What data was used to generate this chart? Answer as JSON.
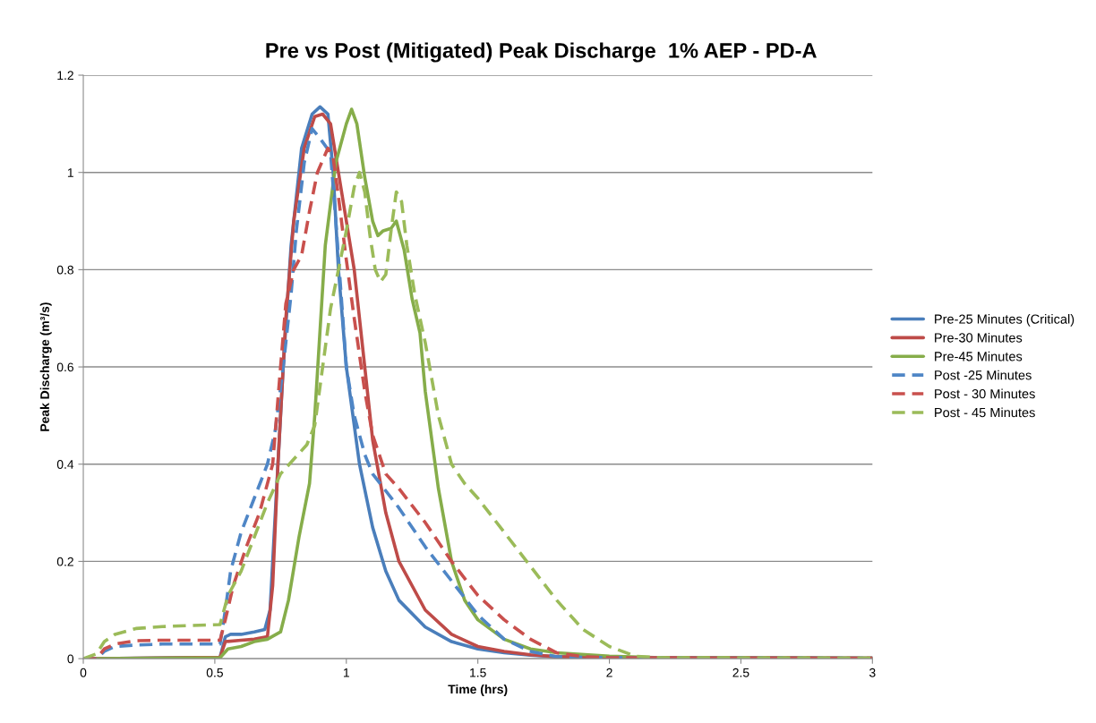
{
  "chart_data": {
    "type": "line",
    "title": "Pre vs Post (Mitigated) Peak Discharge  1% AEP - PD-A",
    "xlabel": "Time (hrs)",
    "ylabel": "Peak Discharge (m³/s)",
    "xlim": [
      0,
      3
    ],
    "xticks": [
      0,
      0.5,
      1,
      1.5,
      2,
      2.5,
      3
    ],
    "ylim": [
      0,
      1.2
    ],
    "yticks": [
      0,
      0.2,
      0.4,
      0.6,
      0.8,
      1,
      1.2
    ],
    "grid": "y",
    "legend": "right",
    "marker": "none",
    "series": [
      {
        "name": "Pre-25 Minutes (Critical)",
        "color": "#4a7ebb",
        "line_style": "solid",
        "x": [
          0,
          0.05,
          0.52,
          0.54,
          0.56,
          0.6,
          0.65,
          0.69,
          0.71,
          0.73,
          0.76,
          0.79,
          0.83,
          0.87,
          0.9,
          0.93,
          0.95,
          0.97,
          1.0,
          1.05,
          1.1,
          1.15,
          1.2,
          1.3,
          1.4,
          1.5,
          1.6,
          1.7,
          1.8,
          2.0,
          3.0
        ],
        "values": [
          0,
          0,
          0.003,
          0.045,
          0.05,
          0.05,
          0.055,
          0.06,
          0.1,
          0.3,
          0.6,
          0.85,
          1.05,
          1.12,
          1.135,
          1.12,
          1.0,
          0.8,
          0.6,
          0.4,
          0.27,
          0.18,
          0.12,
          0.065,
          0.035,
          0.02,
          0.012,
          0.007,
          0.004,
          0.002,
          0.001
        ]
      },
      {
        "name": "Pre-30 Minutes",
        "color": "#be4b48",
        "line_style": "solid",
        "x": [
          0,
          0.05,
          0.52,
          0.54,
          0.6,
          0.65,
          0.7,
          0.72,
          0.74,
          0.77,
          0.8,
          0.84,
          0.88,
          0.91,
          0.94,
          0.97,
          1.0,
          1.03,
          1.07,
          1.1,
          1.15,
          1.2,
          1.3,
          1.4,
          1.5,
          1.6,
          1.7,
          1.8,
          2.0,
          3.0
        ],
        "values": [
          0,
          0,
          0.003,
          0.035,
          0.038,
          0.04,
          0.045,
          0.15,
          0.4,
          0.7,
          0.9,
          1.05,
          1.115,
          1.12,
          1.1,
          1.0,
          0.9,
          0.8,
          0.6,
          0.45,
          0.3,
          0.2,
          0.1,
          0.05,
          0.025,
          0.015,
          0.008,
          0.004,
          0.002,
          0.001
        ]
      },
      {
        "name": "Pre-45 Minutes",
        "color": "#86ad4a",
        "line_style": "solid",
        "x": [
          0,
          0.05,
          0.52,
          0.55,
          0.6,
          0.65,
          0.7,
          0.75,
          0.78,
          0.82,
          0.86,
          0.88,
          0.92,
          0.96,
          1.0,
          1.02,
          1.04,
          1.07,
          1.1,
          1.12,
          1.14,
          1.17,
          1.19,
          1.22,
          1.25,
          1.28,
          1.3,
          1.35,
          1.4,
          1.45,
          1.5,
          1.6,
          1.7,
          1.8,
          2.0,
          2.2,
          3.0
        ],
        "values": [
          0,
          0,
          0.002,
          0.02,
          0.025,
          0.035,
          0.04,
          0.055,
          0.12,
          0.25,
          0.36,
          0.5,
          0.85,
          1.02,
          1.1,
          1.13,
          1.1,
          0.99,
          0.9,
          0.87,
          0.88,
          0.885,
          0.9,
          0.84,
          0.74,
          0.67,
          0.55,
          0.35,
          0.2,
          0.12,
          0.08,
          0.04,
          0.02,
          0.012,
          0.005,
          0.002,
          0.001
        ]
      },
      {
        "name": "Post -25 Minutes",
        "color": "#4f86c6",
        "line_style": "dashed",
        "x": [
          0,
          0.05,
          0.08,
          0.12,
          0.2,
          0.3,
          0.4,
          0.52,
          0.54,
          0.56,
          0.6,
          0.65,
          0.7,
          0.73,
          0.76,
          0.79,
          0.81,
          0.84,
          0.87,
          0.9,
          0.94,
          0.96,
          0.98,
          1.0,
          1.03,
          1.07,
          1.1,
          1.2,
          1.3,
          1.4,
          1.5,
          1.6,
          1.7,
          1.8,
          2.0,
          3.0
        ],
        "values": [
          0,
          0,
          0.015,
          0.025,
          0.028,
          0.03,
          0.03,
          0.03,
          0.1,
          0.18,
          0.26,
          0.33,
          0.4,
          0.47,
          0.6,
          0.75,
          0.88,
          1.02,
          1.09,
          1.07,
          1.04,
          0.9,
          0.75,
          0.6,
          0.5,
          0.42,
          0.38,
          0.31,
          0.23,
          0.16,
          0.09,
          0.04,
          0.015,
          0.004,
          0.002,
          0.001
        ]
      },
      {
        "name": "Post - 30 Minutes",
        "color": "#c9504d",
        "line_style": "dashed",
        "x": [
          0,
          0.05,
          0.08,
          0.12,
          0.2,
          0.3,
          0.52,
          0.54,
          0.57,
          0.62,
          0.67,
          0.72,
          0.75,
          0.77,
          0.8,
          0.83,
          0.86,
          0.89,
          0.93,
          0.95,
          0.97,
          1.0,
          1.03,
          1.07,
          1.1,
          1.15,
          1.2,
          1.3,
          1.4,
          1.5,
          1.6,
          1.7,
          1.8,
          1.9,
          2.0,
          3.0
        ],
        "values": [
          0,
          0,
          0.02,
          0.03,
          0.037,
          0.038,
          0.038,
          0.08,
          0.15,
          0.23,
          0.3,
          0.4,
          0.6,
          0.73,
          0.8,
          0.83,
          0.92,
          1.0,
          1.05,
          1.03,
          0.95,
          0.82,
          0.7,
          0.55,
          0.46,
          0.38,
          0.35,
          0.28,
          0.2,
          0.13,
          0.08,
          0.04,
          0.012,
          0.004,
          0.002,
          0.001
        ]
      },
      {
        "name": "Post - 45 Minutes",
        "color": "#9bbb59",
        "line_style": "dashed",
        "x": [
          0,
          0.05,
          0.08,
          0.12,
          0.2,
          0.3,
          0.4,
          0.52,
          0.55,
          0.6,
          0.65,
          0.7,
          0.75,
          0.8,
          0.85,
          0.88,
          0.91,
          0.94,
          0.97,
          1.0,
          1.03,
          1.05,
          1.07,
          1.09,
          1.11,
          1.13,
          1.15,
          1.17,
          1.19,
          1.21,
          1.23,
          1.26,
          1.3,
          1.35,
          1.4,
          1.45,
          1.5,
          1.6,
          1.7,
          1.8,
          1.9,
          2.0,
          2.1,
          2.2,
          3.0
        ],
        "values": [
          0,
          0.01,
          0.035,
          0.05,
          0.062,
          0.066,
          0.068,
          0.07,
          0.13,
          0.18,
          0.25,
          0.32,
          0.38,
          0.41,
          0.44,
          0.48,
          0.6,
          0.72,
          0.8,
          0.88,
          0.97,
          1.0,
          0.96,
          0.87,
          0.8,
          0.775,
          0.79,
          0.88,
          0.96,
          0.94,
          0.85,
          0.75,
          0.65,
          0.5,
          0.4,
          0.36,
          0.33,
          0.26,
          0.19,
          0.12,
          0.06,
          0.025,
          0.005,
          0.002,
          0.001
        ]
      }
    ]
  }
}
